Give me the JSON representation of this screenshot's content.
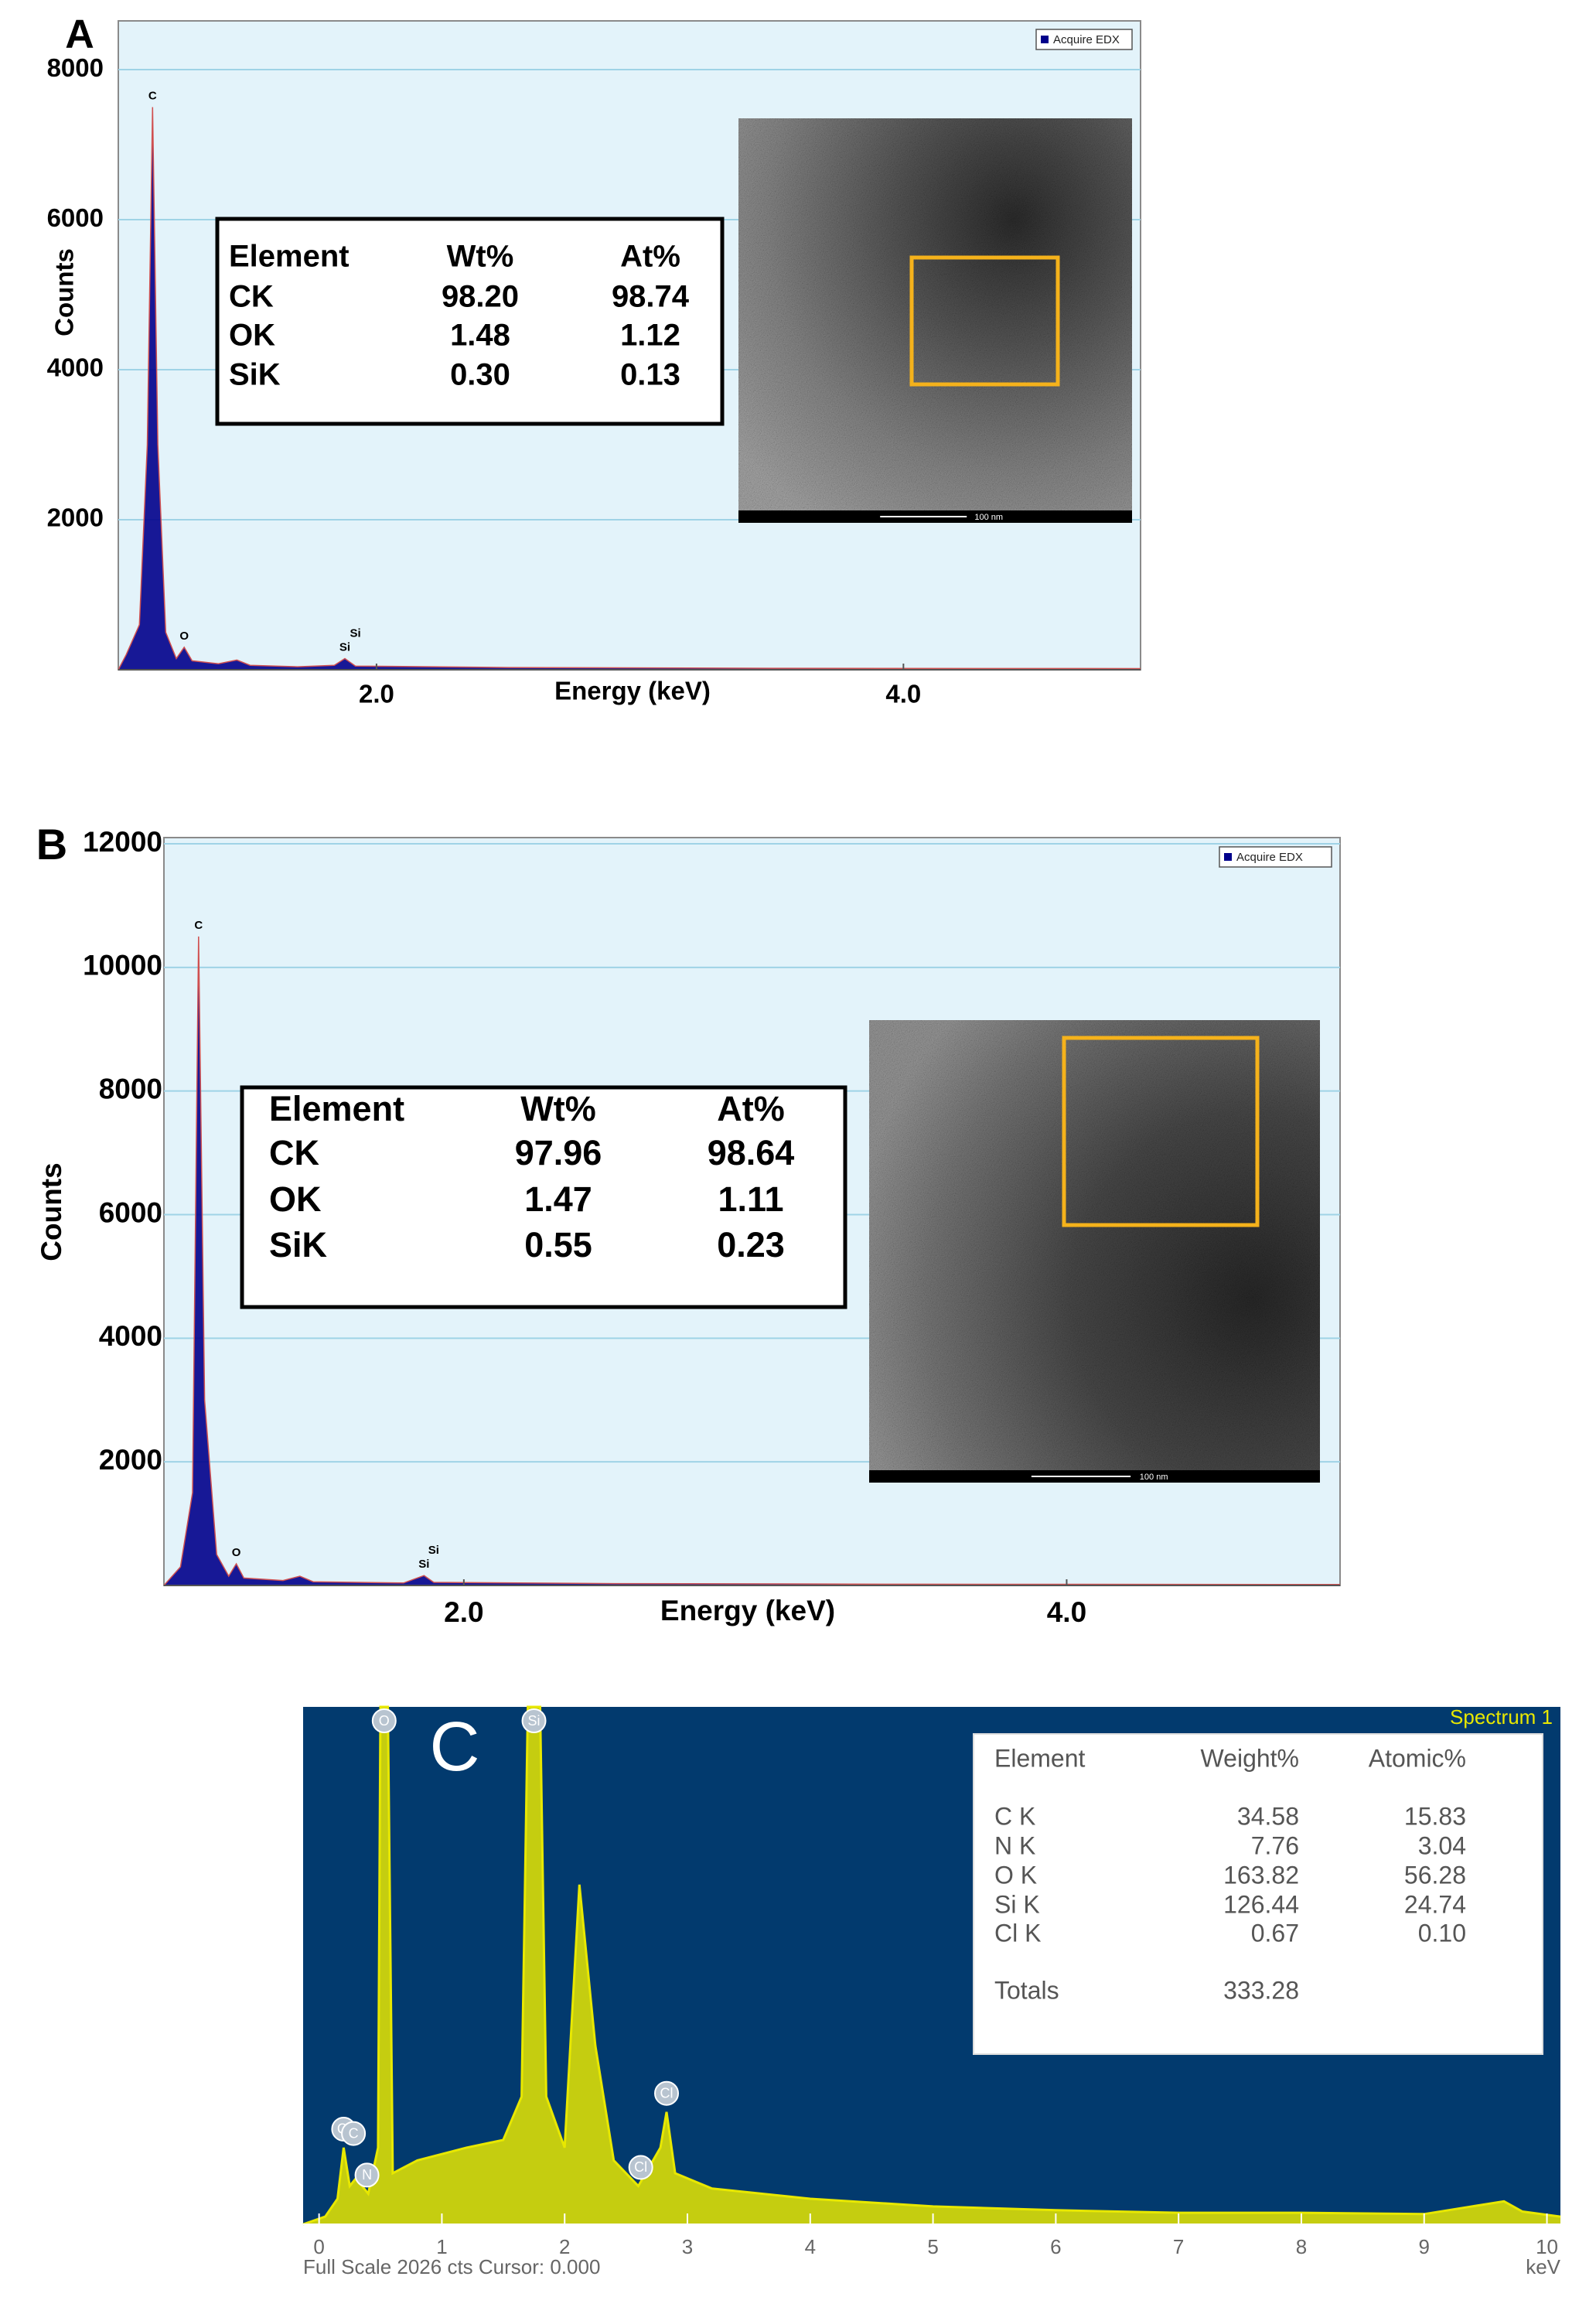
{
  "chart_data": [
    {
      "type": "area",
      "panel_label": "A",
      "x_label": "Energy (keV)",
      "y_label": "Counts",
      "xlim": [
        1.02,
        4.9
      ],
      "ylim": [
        0,
        8650
      ],
      "xticks": [
        {
          "value": 2,
          "label": "2.0"
        },
        {
          "value": 4,
          "label": "4.0"
        }
      ],
      "yticks": [
        2000,
        4000,
        6000,
        8000
      ],
      "grid": true,
      "legend": "top-right",
      "series": [
        {
          "name": "Acquire EDX",
          "color": "#00008b",
          "x": [
            1.02,
            1.05,
            1.1,
            1.13,
            1.15,
            1.17,
            1.2,
            1.24,
            1.27,
            1.3,
            1.4,
            1.47,
            1.52,
            1.7,
            1.84,
            1.88,
            1.92,
            2.5,
            3.5,
            4.9
          ],
          "values": [
            0,
            200,
            600,
            3000,
            7500,
            3000,
            500,
            150,
            300,
            120,
            80,
            130,
            60,
            40,
            60,
            150,
            50,
            30,
            20,
            15
          ]
        }
      ],
      "annotations": [
        {
          "text": "C",
          "x": 1.15
        },
        {
          "text": "O",
          "x": 1.27
        },
        {
          "text": "Si",
          "x": 1.88
        },
        {
          "text": "Si",
          "x": 1.92
        }
      ],
      "table": {
        "columns": [
          "Element",
          "Wt%",
          "At%"
        ],
        "rows": [
          [
            "CK",
            "98.20",
            "98.74"
          ],
          [
            "OK",
            "1.48",
            "1.12"
          ],
          [
            "SiK",
            "0.30",
            "0.13"
          ]
        ]
      },
      "inset": {
        "scale_bar": "100 nm"
      }
    },
    {
      "type": "area",
      "panel_label": "B",
      "x_label": "Energy (keV)",
      "y_label": "Counts",
      "xlim": [
        1.005,
        4.907
      ],
      "ylim": [
        0,
        12100
      ],
      "xticks": [
        {
          "value": 2,
          "label": "2.0"
        },
        {
          "value": 4,
          "label": "4.0"
        }
      ],
      "yticks": [
        2000,
        4000,
        6000,
        8000,
        10000,
        12000
      ],
      "grid": true,
      "legend": "top-right",
      "series": [
        {
          "name": "Acquire EDX",
          "color": "#00008b",
          "x": [
            1.005,
            1.06,
            1.1,
            1.12,
            1.14,
            1.18,
            1.22,
            1.245,
            1.27,
            1.4,
            1.456,
            1.5,
            1.8,
            1.868,
            1.9,
            2.5,
            3.5,
            4.907
          ],
          "values": [
            0,
            300,
            1500,
            10500,
            3000,
            500,
            150,
            350,
            120,
            80,
            150,
            60,
            40,
            160,
            50,
            30,
            20,
            15
          ]
        }
      ],
      "annotations": [
        {
          "text": "C",
          "x": 1.12
        },
        {
          "text": "O",
          "x": 1.245
        },
        {
          "text": "Si",
          "x": 1.868
        },
        {
          "text": "Si",
          "x": 1.9
        }
      ],
      "table": {
        "columns": [
          "Element",
          "Wt%",
          "At%"
        ],
        "rows": [
          [
            "CK",
            "97.96",
            "98.64"
          ],
          [
            "OK",
            "1.47",
            "1.11"
          ],
          [
            "SiK",
            "0.55",
            "0.23"
          ]
        ]
      },
      "inset": {
        "scale_bar": "100 nm"
      }
    },
    {
      "type": "area",
      "panel_label": "C",
      "x_unit": "keV",
      "xlim": [
        -0.13,
        10.11
      ],
      "ylim": [
        0,
        2026
      ],
      "xticks": [
        0,
        1,
        2,
        3,
        4,
        5,
        6,
        7,
        8,
        9,
        10
      ],
      "grid": false,
      "legend": "top-right",
      "series": [
        {
          "name": "Spectrum 1",
          "color": "#e8e800",
          "x": [
            -0.13,
            0.05,
            0.15,
            0.2,
            0.25,
            0.3,
            0.4,
            0.48,
            0.5,
            0.56,
            0.6,
            0.8,
            1.2,
            1.5,
            1.65,
            1.7,
            1.8,
            1.85,
            2.0,
            2.12,
            2.25,
            2.4,
            2.6,
            2.78,
            2.83,
            2.9,
            3.2,
            4,
            5,
            6,
            7,
            8,
            9,
            9.65,
            9.8,
            10.11
          ],
          "values": [
            0,
            30,
            100,
            300,
            150,
            180,
            120,
            300,
            2026,
            2026,
            200,
            250,
            300,
            330,
            500,
            2026,
            2026,
            500,
            300,
            1330,
            700,
            250,
            150,
            300,
            440,
            200,
            140,
            100,
            70,
            55,
            45,
            45,
            40,
            90,
            50,
            30
          ]
        }
      ],
      "annotations": [
        {
          "text": "O",
          "x": 0.53
        },
        {
          "text": "Si",
          "x": 1.75
        },
        {
          "text": "Cl",
          "x": 0.2
        },
        {
          "text": "C",
          "x": 0.28
        },
        {
          "text": "N",
          "x": 0.39
        },
        {
          "text": "Cl",
          "x": 2.62
        },
        {
          "text": "Cl",
          "x": 2.83
        }
      ],
      "table": {
        "columns": [
          "Element",
          "Weight%",
          "Atomic%"
        ],
        "rows": [
          [
            "C K",
            "34.58",
            "15.83"
          ],
          [
            "N K",
            "7.76",
            "3.04"
          ],
          [
            "O K",
            "163.82",
            "56.28"
          ],
          [
            "Si K",
            "126.44",
            "24.74"
          ],
          [
            "Cl K",
            "0.67",
            "0.10"
          ]
        ],
        "totals": {
          "label": "Totals",
          "weight": "333.28"
        }
      },
      "footer": "Full Scale 2026 cts Cursor: 0.000"
    }
  ]
}
